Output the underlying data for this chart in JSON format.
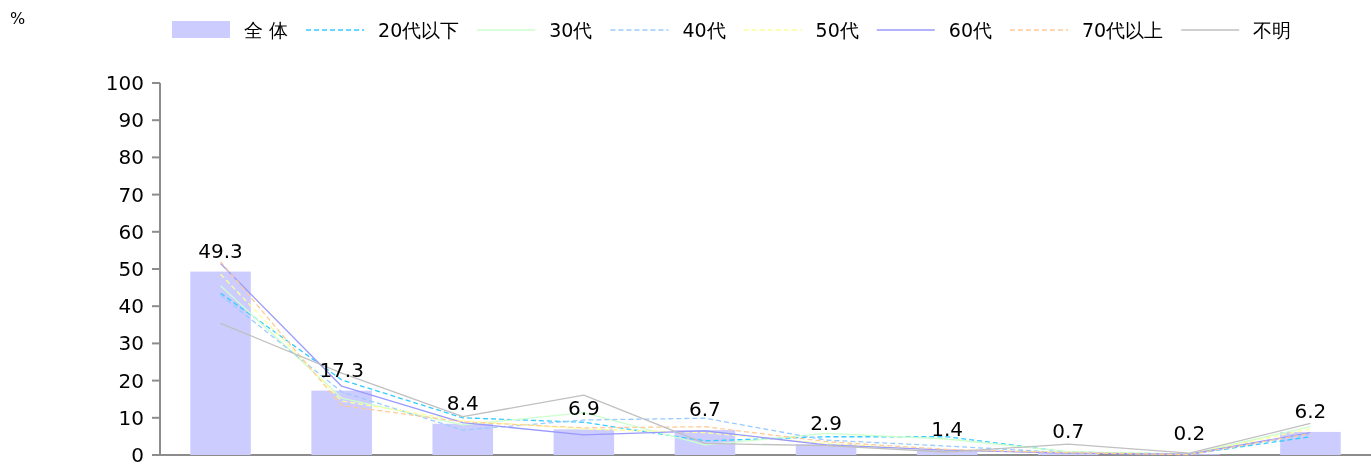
{
  "chart_data": {
    "type": "bar",
    "annotations": [
      "%"
    ],
    "categories": [
      null,
      null,
      null,
      null,
      null,
      null,
      null,
      null,
      null,
      null
    ],
    "ylim": [
      0,
      100
    ],
    "yticks": [
      0,
      10,
      20,
      30,
      40,
      50,
      60,
      70,
      80,
      90,
      100
    ],
    "legend": "top",
    "series": [
      {
        "name": "全 体",
        "color": "#ccccff",
        "values": [
          49.3,
          17.3,
          8.4,
          6.9,
          6.7,
          2.9,
          1.4,
          0.7,
          0.2,
          6.2
        ],
        "value_labels": [
          "49.3",
          "17.3",
          "8.4",
          "6.9",
          "6.7",
          "2.9",
          "1.4",
          "0.7",
          "0.2",
          "6.2"
        ]
      },
      {
        "name": "20代以下",
        "type": "line",
        "color": "#33ccff",
        "line_style": "dashed",
        "values": [
          43.5,
          20.2,
          10.0,
          8.8,
          3.8,
          4.9,
          4.9,
          0.8,
          0.2,
          4.9
        ]
      },
      {
        "name": "30代",
        "type": "line",
        "color": "#ccffcc",
        "line_style": "solid",
        "values": [
          45.5,
          15.3,
          8.1,
          11.4,
          2.7,
          5.8,
          4.3,
          0.9,
          0.2,
          7.6
        ]
      },
      {
        "name": "40代",
        "type": "line",
        "color": "#99ccff",
        "line_style": "dashed",
        "values": [
          43.0,
          17.0,
          6.7,
          9.4,
          9.9,
          4.0,
          2.4,
          0.6,
          0.1,
          5.6
        ]
      },
      {
        "name": "50代",
        "type": "line",
        "color": "#ffff99",
        "line_style": "dashed",
        "values": [
          48.6,
          14.5,
          9.2,
          7.0,
          6.0,
          3.1,
          1.2,
          0.7,
          0.2,
          7.0
        ]
      },
      {
        "name": "60代",
        "type": "line",
        "color": "#9999ff",
        "line_style": "solid",
        "values": [
          51.5,
          18.5,
          8.7,
          5.4,
          6.5,
          2.7,
          1.3,
          0.5,
          0.2,
          6.0
        ]
      },
      {
        "name": "70代以上",
        "type": "line",
        "color": "#ffcc99",
        "line_style": "dashed",
        "values": [
          52.0,
          13.3,
          8.9,
          7.3,
          7.6,
          3.6,
          1.5,
          0.6,
          0.1,
          5.8
        ]
      },
      {
        "name": "不明",
        "type": "line",
        "color": "#c0c0c0",
        "line_style": "solid",
        "values": [
          35.4,
          22.0,
          10.3,
          16.1,
          3.1,
          2.5,
          0.8,
          2.9,
          0.5,
          8.5
        ]
      }
    ]
  }
}
